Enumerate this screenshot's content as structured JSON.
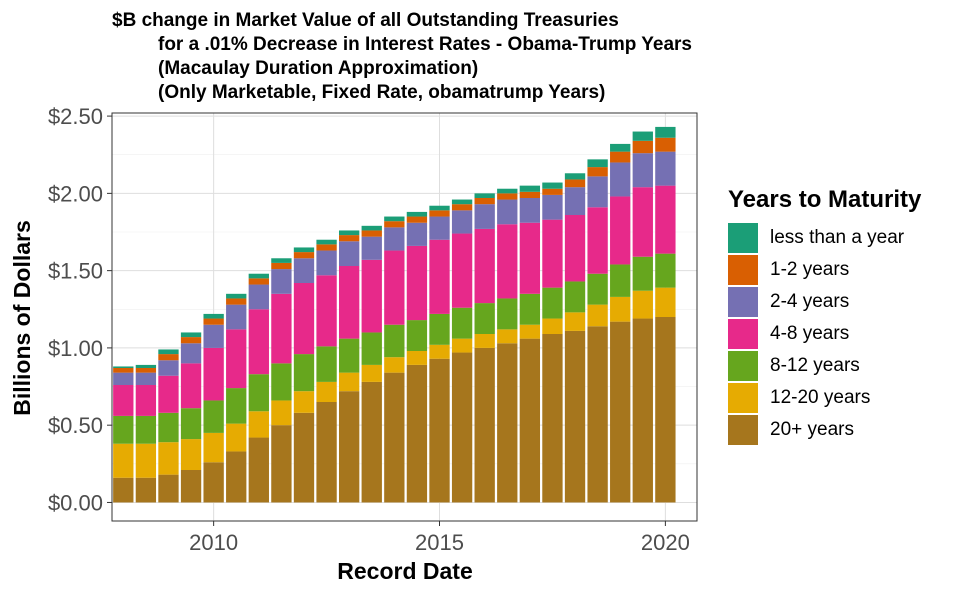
{
  "chart_data": {
    "type": "bar",
    "stacked": true,
    "title_lines": [
      "$B change in Market Value of all Outstanding Treasuries",
      "for a .01% Decrease in Interest Rates - Obama-Trump Years",
      "(Macaulay Duration Approximation)",
      "(Only Marketable, Fixed Rate, obamatrump Years)"
    ],
    "xlabel": "Record Date",
    "ylabel": "Billions of Dollars",
    "x_ticks": [
      "2010",
      "2015",
      "2020"
    ],
    "x_tick_values": [
      2010,
      2015,
      2020
    ],
    "y_ticks": [
      "$0.00",
      "$0.50",
      "$1.00",
      "$1.50",
      "$2.00",
      "$2.50"
    ],
    "y_tick_values": [
      0,
      0.5,
      1.0,
      1.5,
      2.0,
      2.5
    ],
    "xlim": [
      2007.75,
      2020.7
    ],
    "ylim": [
      -0.12,
      2.52
    ],
    "grid": true,
    "legend_title": "Years to Maturity",
    "legend_position": "right",
    "x": [
      2008.0,
      2008.5,
      2009.0,
      2009.5,
      2010.0,
      2010.5,
      2011.0,
      2011.5,
      2012.0,
      2012.5,
      2013.0,
      2013.5,
      2014.0,
      2014.5,
      2015.0,
      2015.5,
      2016.0,
      2016.5,
      2017.0,
      2017.5,
      2018.0,
      2018.5,
      2019.0,
      2019.5,
      2020.0
    ],
    "series": [
      {
        "name": "less than a year",
        "color": "#1b9e77",
        "values": [
          0.01,
          0.02,
          0.03,
          0.03,
          0.03,
          0.03,
          0.03,
          0.03,
          0.03,
          0.03,
          0.03,
          0.03,
          0.03,
          0.03,
          0.03,
          0.03,
          0.03,
          0.03,
          0.04,
          0.04,
          0.04,
          0.05,
          0.05,
          0.06,
          0.07
        ]
      },
      {
        "name": "1-2 years",
        "color": "#d95f02",
        "values": [
          0.03,
          0.03,
          0.04,
          0.04,
          0.04,
          0.04,
          0.04,
          0.04,
          0.04,
          0.04,
          0.04,
          0.04,
          0.04,
          0.04,
          0.04,
          0.04,
          0.04,
          0.04,
          0.04,
          0.04,
          0.05,
          0.06,
          0.07,
          0.08,
          0.09
        ]
      },
      {
        "name": "2-4 years",
        "color": "#7570b3",
        "values": [
          0.08,
          0.08,
          0.1,
          0.13,
          0.15,
          0.16,
          0.16,
          0.16,
          0.16,
          0.16,
          0.16,
          0.15,
          0.15,
          0.15,
          0.15,
          0.15,
          0.16,
          0.16,
          0.16,
          0.16,
          0.18,
          0.2,
          0.22,
          0.22,
          0.22
        ]
      },
      {
        "name": "4-8 years",
        "color": "#e7298a",
        "values": [
          0.2,
          0.2,
          0.24,
          0.29,
          0.34,
          0.38,
          0.42,
          0.45,
          0.46,
          0.46,
          0.47,
          0.47,
          0.48,
          0.48,
          0.48,
          0.48,
          0.48,
          0.48,
          0.46,
          0.44,
          0.43,
          0.43,
          0.44,
          0.45,
          0.44
        ]
      },
      {
        "name": "8-12 years",
        "color": "#66a61e",
        "values": [
          0.18,
          0.18,
          0.19,
          0.2,
          0.21,
          0.23,
          0.24,
          0.24,
          0.24,
          0.23,
          0.22,
          0.21,
          0.21,
          0.2,
          0.2,
          0.2,
          0.2,
          0.2,
          0.2,
          0.2,
          0.2,
          0.2,
          0.21,
          0.22,
          0.22
        ]
      },
      {
        "name": "12-20 years",
        "color": "#e6ab02",
        "values": [
          0.22,
          0.22,
          0.21,
          0.2,
          0.19,
          0.18,
          0.17,
          0.16,
          0.14,
          0.13,
          0.12,
          0.11,
          0.1,
          0.09,
          0.09,
          0.09,
          0.09,
          0.09,
          0.09,
          0.1,
          0.12,
          0.14,
          0.16,
          0.18,
          0.19
        ]
      },
      {
        "name": "20+ years",
        "color": "#a6761d",
        "values": [
          0.16,
          0.16,
          0.18,
          0.21,
          0.26,
          0.33,
          0.42,
          0.5,
          0.58,
          0.65,
          0.72,
          0.78,
          0.84,
          0.89,
          0.93,
          0.97,
          1.0,
          1.03,
          1.06,
          1.09,
          1.11,
          1.14,
          1.17,
          1.19,
          1.2
        ]
      }
    ]
  }
}
